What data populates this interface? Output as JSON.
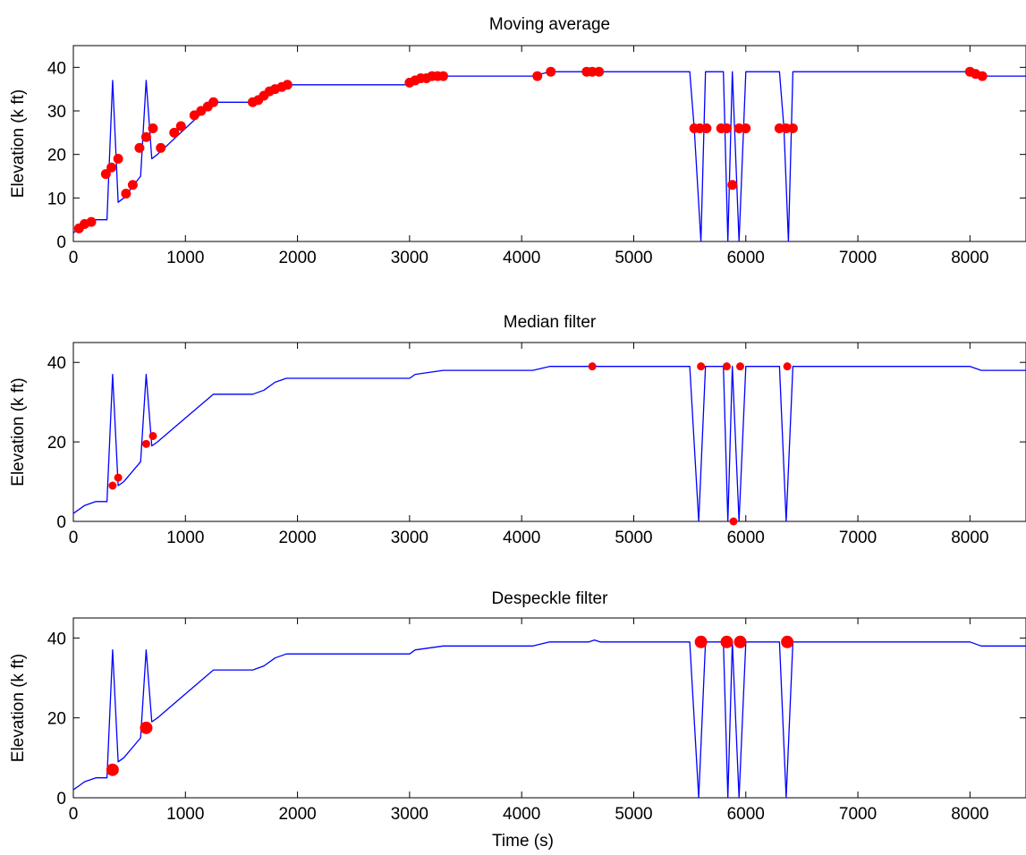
{
  "chart_data": [
    {
      "type": "line",
      "title": "Moving average",
      "xlabel": "",
      "ylabel": "Elevation (k ft)",
      "xlim": [
        0,
        8500
      ],
      "ylim": [
        0,
        45
      ],
      "xticks": [
        0,
        1000,
        2000,
        3000,
        4000,
        5000,
        6000,
        7000,
        8000
      ],
      "yticks": [
        0,
        10,
        20,
        30,
        40
      ],
      "grid": false,
      "series": [
        {
          "role": "line",
          "color": "#0000ff",
          "x": [
            0,
            50,
            100,
            200,
            300,
            350,
            400,
            450,
            600,
            650,
            700,
            750,
            1000,
            1250,
            1600,
            1700,
            1800,
            1900,
            2000,
            3000,
            3050,
            3300,
            4100,
            4250,
            4600,
            5200,
            5500,
            5540,
            5600,
            5640,
            5800,
            5840,
            5880,
            5940,
            6000,
            6300,
            6340,
            6380,
            6420,
            8000,
            8100,
            8500
          ],
          "y": [
            2,
            3,
            4,
            5,
            5,
            37,
            9,
            10,
            15,
            37,
            19,
            20,
            26,
            32,
            32,
            33,
            35,
            36,
            36,
            36,
            37,
            38,
            38,
            39,
            39,
            39,
            39,
            26,
            0,
            39,
            39,
            0,
            39,
            0,
            39,
            39,
            26,
            0,
            39,
            39,
            38,
            38
          ]
        },
        {
          "role": "markers",
          "color": "#ff0000",
          "x": [
            50,
            100,
            160,
            290,
            340,
            400,
            470,
            530,
            590,
            650,
            710,
            780,
            900,
            960,
            1080,
            1140,
            1200,
            1250,
            1600,
            1650,
            1700,
            1750,
            1800,
            1860,
            1910,
            3000,
            3050,
            3100,
            3150,
            3200,
            3250,
            3300,
            4140,
            4260,
            4580,
            4630,
            4690,
            5540,
            5590,
            5650,
            5780,
            5830,
            5880,
            5940,
            6000,
            6300,
            6360,
            6420,
            8000,
            8050,
            8110
          ],
          "y": [
            3,
            4,
            4.5,
            15.5,
            17,
            19,
            11,
            13,
            21.5,
            24,
            26,
            21.5,
            25,
            26.5,
            29,
            30,
            31,
            32,
            32,
            32.5,
            33.5,
            34.5,
            35,
            35.5,
            36,
            36.5,
            37,
            37.5,
            37.5,
            38,
            38,
            38,
            38,
            39,
            39,
            39,
            39,
            26,
            26,
            26,
            26,
            26,
            13,
            26,
            26,
            26,
            26,
            26,
            39,
            38.5,
            38
          ]
        }
      ]
    },
    {
      "type": "line",
      "title": "Median filter",
      "xlabel": "",
      "ylabel": "Elevation (k ft)",
      "xlim": [
        0,
        8500
      ],
      "ylim": [
        0,
        45
      ],
      "xticks": [
        0,
        1000,
        2000,
        3000,
        4000,
        5000,
        6000,
        7000,
        8000
      ],
      "yticks": [
        0,
        20,
        40
      ],
      "grid": false,
      "series": [
        {
          "role": "line",
          "color": "#0000ff",
          "x": [
            0,
            50,
            100,
            200,
            300,
            350,
            400,
            450,
            600,
            650,
            700,
            750,
            1000,
            1250,
            1600,
            1700,
            1800,
            1900,
            2000,
            3000,
            3050,
            3300,
            4100,
            4250,
            4600,
            5200,
            5500,
            5580,
            5640,
            5800,
            5840,
            5880,
            5940,
            6000,
            6300,
            6360,
            6420,
            8000,
            8100,
            8500
          ],
          "y": [
            2,
            3,
            4,
            5,
            5,
            37,
            9,
            10,
            15,
            37,
            19,
            20,
            26,
            32,
            32,
            33,
            35,
            36,
            36,
            36,
            37,
            38,
            38,
            39,
            39,
            39,
            39,
            0,
            39,
            39,
            0,
            39,
            0,
            39,
            39,
            0,
            39,
            39,
            38,
            38
          ]
        },
        {
          "role": "markers",
          "color": "#ff0000",
          "x": [
            350,
            400,
            650,
            710,
            4630,
            5600,
            5830,
            5890,
            5950,
            6370
          ],
          "y": [
            9,
            11,
            19.5,
            21.5,
            39,
            39,
            39,
            0,
            39,
            39
          ]
        }
      ]
    },
    {
      "type": "line",
      "title": "Despeckle filter",
      "xlabel": "Time (s)",
      "ylabel": "Elevation (k ft)",
      "xlim": [
        0,
        8500
      ],
      "ylim": [
        0,
        45
      ],
      "xticks": [
        0,
        1000,
        2000,
        3000,
        4000,
        5000,
        6000,
        7000,
        8000
      ],
      "yticks": [
        0,
        20,
        40
      ],
      "grid": false,
      "series": [
        {
          "role": "line",
          "color": "#0000ff",
          "x": [
            0,
            50,
            100,
            200,
            300,
            350,
            400,
            450,
            600,
            650,
            700,
            750,
            1000,
            1250,
            1600,
            1700,
            1800,
            1900,
            2000,
            3000,
            3050,
            3300,
            4100,
            4250,
            4600,
            4650,
            4700,
            5500,
            5580,
            5640,
            5800,
            5840,
            5880,
            5940,
            6000,
            6300,
            6360,
            6420,
            8000,
            8100,
            8500
          ],
          "y": [
            2,
            3,
            4,
            5,
            5,
            37,
            9,
            10,
            15,
            37,
            19,
            20,
            26,
            32,
            32,
            33,
            35,
            36,
            36,
            36,
            37,
            38,
            38,
            39,
            39,
            39.5,
            39,
            39,
            0,
            39,
            39,
            0,
            39,
            0,
            39,
            39,
            0,
            39,
            39,
            38,
            38
          ]
        },
        {
          "role": "markers",
          "color": "#ff0000",
          "x": [
            350,
            650,
            5600,
            5830,
            5950,
            6370
          ],
          "y": [
            7,
            17.5,
            39,
            39,
            39,
            39
          ]
        }
      ]
    }
  ]
}
